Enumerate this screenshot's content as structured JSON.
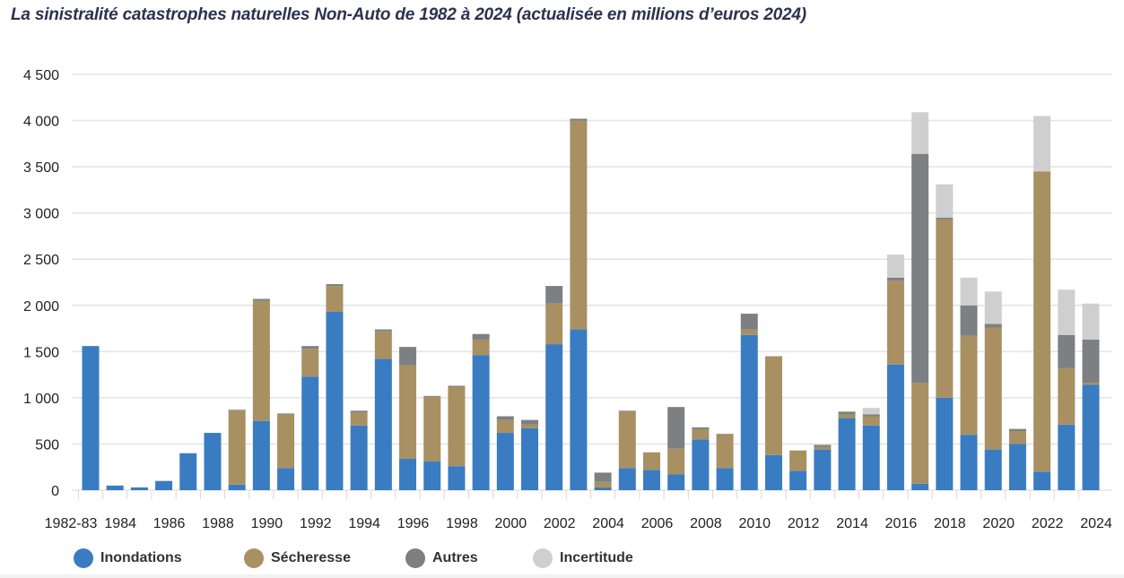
{
  "chart_data": {
    "type": "bar",
    "stacked": true,
    "title": "La sinistralité catastrophes naturelles Non-Auto de 1982 à 2024 (actualisée en millions d’euros 2024)",
    "xlabel": "",
    "ylabel": "",
    "ylim": [
      0,
      4500
    ],
    "yticks": [
      0,
      500,
      1000,
      1500,
      2000,
      2500,
      3000,
      3500,
      4000,
      4500
    ],
    "ytick_labels": [
      "0",
      "500",
      "1 000",
      "1 500",
      "2 000",
      "2 500",
      "3 000",
      "3 500",
      "4 000",
      "4 500"
    ],
    "grid": true,
    "legend_position": "bottom",
    "categories": [
      "1982-83",
      "1984",
      "1985",
      "1986",
      "1987",
      "1988",
      "1989",
      "1990",
      "1991",
      "1992",
      "1993",
      "1994",
      "1995",
      "1996",
      "1997",
      "1998",
      "1999",
      "2000",
      "2001",
      "2002",
      "2003",
      "2004",
      "2005",
      "2006",
      "2007",
      "2008",
      "2009",
      "2010",
      "2011",
      "2012",
      "2013",
      "2014",
      "2015",
      "2016",
      "2017",
      "2018",
      "2019",
      "2020",
      "2021",
      "2022",
      "2023",
      "2024"
    ],
    "xtick_labels_shown": [
      "1982-83",
      "1984",
      "1986",
      "1988",
      "1990",
      "1992",
      "1994",
      "1996",
      "1998",
      "2000",
      "2002",
      "2004",
      "2006",
      "2008",
      "2010",
      "2012",
      "2014",
      "2016",
      "2018",
      "2020",
      "2022",
      "2024"
    ],
    "series": [
      {
        "name": "Inondations",
        "color": "#3a7cc2",
        "values": [
          1560,
          50,
          30,
          100,
          400,
          620,
          60,
          750,
          240,
          1230,
          1930,
          700,
          1420,
          340,
          310,
          260,
          1460,
          620,
          670,
          1580,
          1740,
          30,
          240,
          220,
          170,
          550,
          240,
          1680,
          380,
          210,
          440,
          780,
          700,
          1360,
          70,
          1000,
          600,
          440,
          500,
          200,
          710,
          1140
        ]
      },
      {
        "name": "Sécheresse",
        "color": "#a89063",
        "values": [
          0,
          0,
          0,
          0,
          0,
          0,
          800,
          1300,
          580,
          300,
          280,
          140,
          300,
          1010,
          700,
          860,
          170,
          140,
          40,
          440,
          2260,
          60,
          610,
          190,
          280,
          110,
          370,
          60,
          1070,
          220,
          30,
          40,
          100,
          910,
          1090,
          1930,
          1070,
          1320,
          140,
          3250,
          610,
          20
        ]
      },
      {
        "name": "Autres",
        "color": "#7d8083",
        "values": [
          0,
          0,
          0,
          0,
          0,
          0,
          10,
          20,
          10,
          30,
          20,
          20,
          20,
          200,
          10,
          10,
          60,
          40,
          50,
          190,
          20,
          100,
          10,
          0,
          450,
          20,
          0,
          170,
          0,
          0,
          20,
          30,
          20,
          30,
          2480,
          20,
          330,
          40,
          20,
          0,
          360,
          470
        ]
      },
      {
        "name": "Incertitude",
        "color": "#d0cfd0",
        "values": [
          0,
          0,
          0,
          0,
          0,
          0,
          0,
          0,
          0,
          0,
          0,
          0,
          0,
          0,
          0,
          0,
          0,
          0,
          0,
          0,
          0,
          0,
          0,
          0,
          0,
          0,
          0,
          0,
          0,
          0,
          0,
          0,
          70,
          250,
          450,
          360,
          300,
          350,
          10,
          600,
          490,
          390
        ]
      }
    ]
  }
}
